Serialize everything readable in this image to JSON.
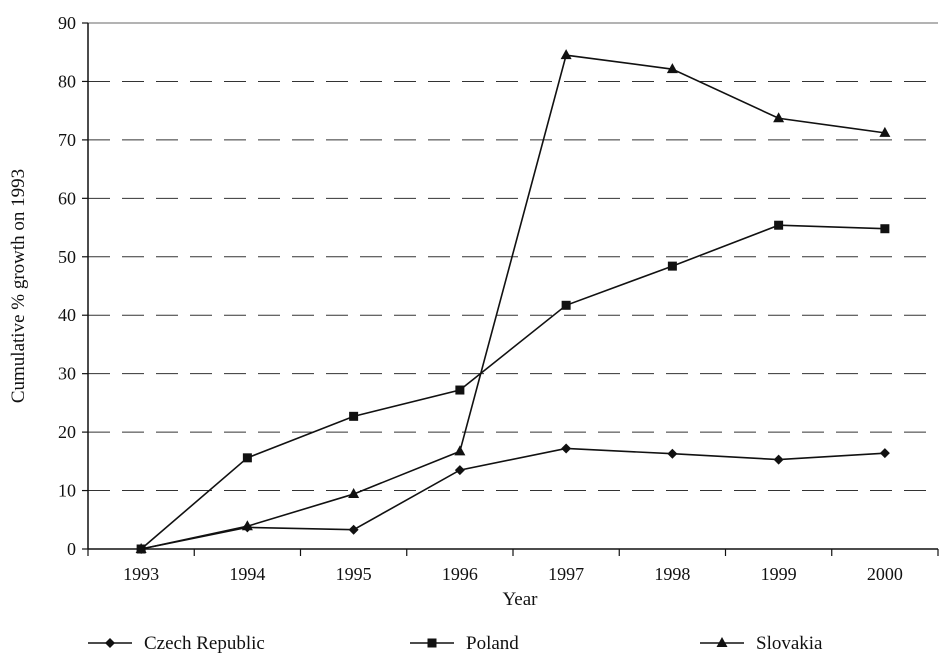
{
  "chart_data": {
    "type": "line",
    "xlabel": "Year",
    "ylabel": "Cumulative % growth on 1993",
    "ylim": [
      0,
      90
    ],
    "yticks": [
      0,
      10,
      20,
      30,
      40,
      50,
      60,
      70,
      80,
      90
    ],
    "categories": [
      "1993",
      "1994",
      "1995",
      "1996",
      "1997",
      "1998",
      "1999",
      "2000"
    ],
    "grid": "horizontal dashed",
    "legend_position": "bottom",
    "series": [
      {
        "name": "Czech Republic",
        "marker": "diamond",
        "values": [
          0,
          3.7,
          3.3,
          13.5,
          17.2,
          16.3,
          15.3,
          16.4
        ]
      },
      {
        "name": "Poland",
        "marker": "square",
        "values": [
          0,
          15.6,
          22.7,
          27.2,
          41.7,
          48.4,
          55.4,
          54.8
        ]
      },
      {
        "name": "Slovakia",
        "marker": "triangle",
        "values": [
          0,
          3.9,
          9.4,
          16.7,
          84.5,
          82.1,
          73.7,
          71.2
        ]
      }
    ]
  }
}
